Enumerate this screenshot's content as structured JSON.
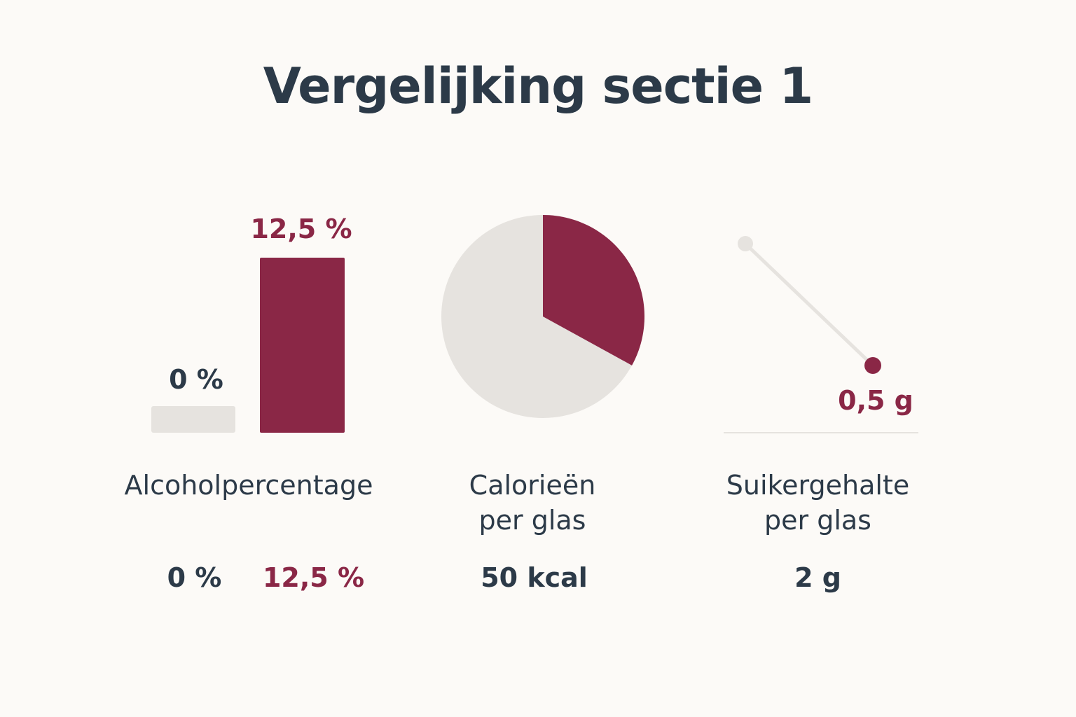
{
  "title": "Vergelijking sectie 1",
  "colors": {
    "text": "#2c3a48",
    "accent": "#8a2746",
    "muted": "#e6e3df",
    "background": "#fcfaf7"
  },
  "chart_data": [
    {
      "type": "bar",
      "categories": [
        "0 %",
        "12,5 %"
      ],
      "values": [
        0,
        12.5
      ],
      "unit": "%",
      "data_labels": [
        "0 %",
        "12,5 %"
      ],
      "label": "Alcoholpercentage",
      "bottom_values": [
        "0 %",
        "12,5 %"
      ]
    },
    {
      "type": "pie",
      "values": [
        50,
        100
      ],
      "highlight_fraction": 0.33,
      "label_line1": "Calorieën",
      "label_line2": "per glas",
      "bottom_value": "50 kcal"
    },
    {
      "type": "line",
      "x": [
        0,
        1
      ],
      "y": [
        2,
        0.5
      ],
      "unit": "g",
      "data_label": "0,5 g",
      "label_line1": "Suikergehalte",
      "label_line2": "per glas",
      "bottom_value": "2 g"
    }
  ]
}
